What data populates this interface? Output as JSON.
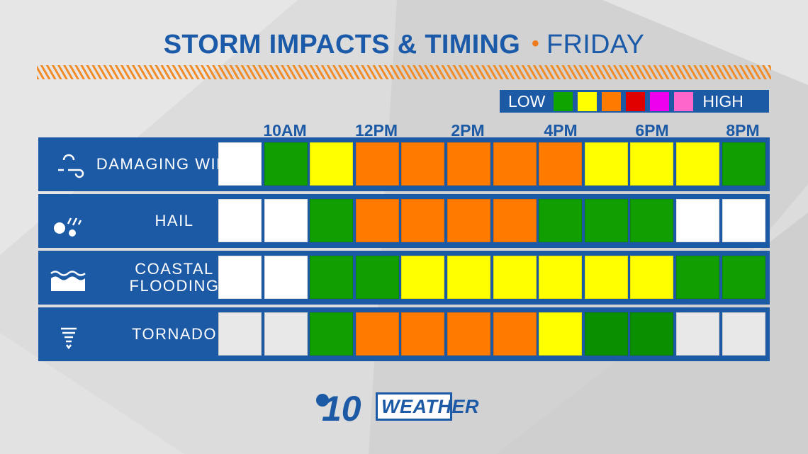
{
  "title": {
    "main": "STORM IMPACTS & TIMING",
    "separator": "•",
    "day": "FRIDAY"
  },
  "legend": {
    "low_label": "LOW",
    "high_label": "HIGH",
    "colors": [
      "#0fa400",
      "#ffff00",
      "#ff7b00",
      "#e10000",
      "#ee00ee",
      "#ff66cc"
    ]
  },
  "time_labels": [
    "10AM",
    "12PM",
    "2PM",
    "4PM",
    "6PM",
    "8PM"
  ],
  "color_key": {
    "none": "#ffffff",
    "none_dim": "#e8e8e8",
    "green": "#109e00",
    "darkgreen": "#0a8f00",
    "yellow": "#ffff00",
    "orange": "#ff7b00"
  },
  "rows": [
    {
      "label": "DAMAGING WINDS",
      "icon": "wind-icon",
      "cells": [
        "none",
        "green",
        "yellow",
        "orange",
        "orange",
        "orange",
        "orange",
        "orange",
        "yellow",
        "yellow",
        "yellow",
        "green"
      ]
    },
    {
      "label": "HAIL",
      "icon": "hail-icon",
      "cells": [
        "none",
        "none",
        "green",
        "orange",
        "orange",
        "orange",
        "orange",
        "green",
        "green",
        "green",
        "none",
        "none"
      ]
    },
    {
      "label": "COASTAL FLOODING",
      "icon": "wave-icon",
      "cells": [
        "none",
        "none",
        "green",
        "green",
        "yellow",
        "yellow",
        "yellow",
        "yellow",
        "yellow",
        "yellow",
        "green",
        "green"
      ]
    },
    {
      "label": "TORNADO",
      "icon": "tornado-icon",
      "cells": [
        "none_dim",
        "none_dim",
        "green",
        "orange",
        "orange",
        "orange",
        "orange",
        "yellow",
        "darkgreen",
        "darkgreen",
        "none_dim",
        "none_dim"
      ]
    }
  ],
  "logo": {
    "number": "10",
    "word": "WEATHER",
    "icon": "cbs-eye-icon"
  }
}
